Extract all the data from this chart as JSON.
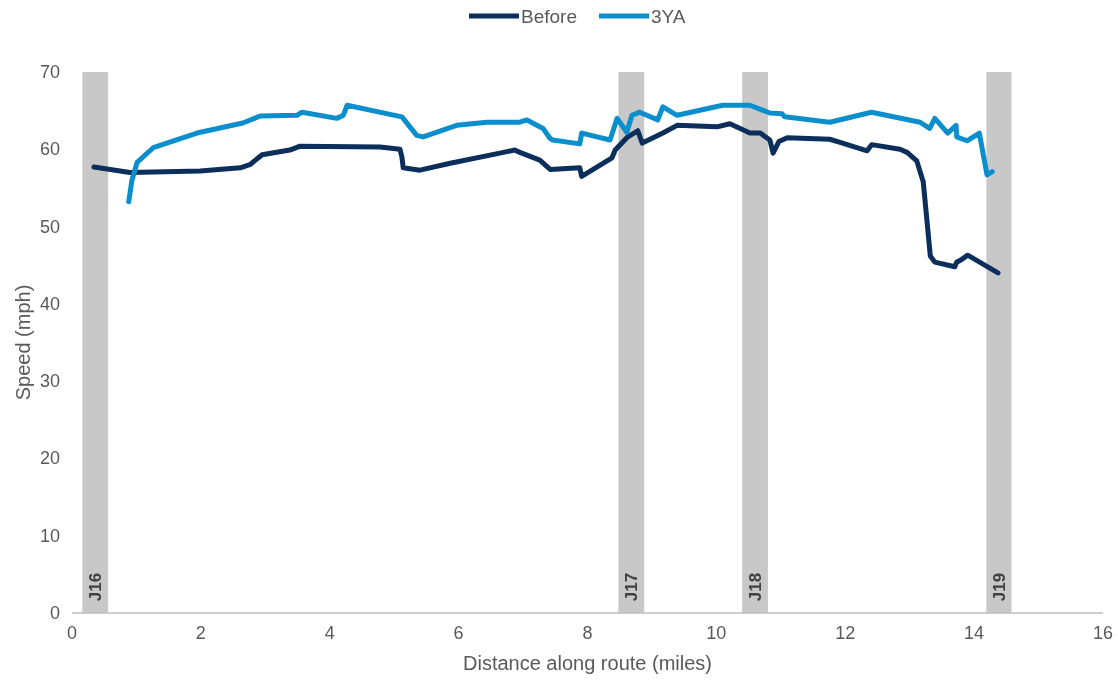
{
  "chart_data": {
    "type": "line",
    "xlabel": "Distance along route (miles)",
    "ylabel": "Speed (mph)",
    "xlim": [
      0,
      16
    ],
    "xticks": [
      0,
      2,
      4,
      6,
      8,
      10,
      12,
      14,
      16
    ],
    "ylim": [
      0,
      70
    ],
    "yticks": [
      0,
      10,
      20,
      30,
      40,
      50,
      60,
      70
    ],
    "grid": false,
    "legend": "top",
    "line_style": "solid",
    "marker": "none",
    "series": [
      {
        "name": "Before",
        "color": "#0b2e5b",
        "x": [
          0.34,
          0.9,
          1.99,
          2.61,
          2.76,
          2.95,
          3.38,
          3.54,
          4.78,
          5.09,
          5.12,
          5.14,
          5.4,
          5.87,
          6.64,
          6.87,
          6.95,
          7.26,
          7.42,
          7.88,
          7.91,
          8.38,
          8.43,
          8.61,
          8.78,
          8.85,
          9.17,
          9.39,
          10.01,
          10.21,
          10.52,
          10.68,
          10.83,
          10.88,
          10.97,
          11.1,
          11.76,
          11.92,
          12.34,
          12.41,
          12.85,
          12.96,
          13.11,
          13.21,
          13.27,
          13.32,
          13.39,
          13.7,
          13.73,
          13.78,
          13.9,
          14.37
        ],
        "values": [
          57.7,
          57.0,
          57.2,
          57.6,
          58.0,
          59.3,
          59.9,
          60.4,
          60.3,
          60.0,
          59.0,
          57.6,
          57.3,
          58.2,
          59.5,
          59.9,
          59.6,
          58.6,
          57.4,
          57.6,
          56.5,
          58.9,
          59.9,
          61.5,
          62.4,
          60.8,
          62.1,
          63.1,
          62.9,
          63.3,
          62.1,
          62.1,
          61.2,
          59.5,
          61.0,
          61.5,
          61.3,
          60.9,
          59.8,
          60.6,
          60.0,
          59.6,
          58.5,
          55.8,
          50.6,
          46.2,
          45.4,
          44.8,
          45.4,
          45.6,
          46.3,
          44.0
        ]
      },
      {
        "name": "3YA",
        "color": "#0a8fcc",
        "x": [
          0.88,
          0.93,
          1.01,
          1.26,
          1.94,
          2.65,
          2.92,
          3.49,
          3.57,
          4.11,
          4.21,
          4.27,
          5.12,
          5.35,
          5.45,
          5.97,
          6.44,
          6.95,
          7.06,
          7.31,
          7.42,
          7.46,
          7.88,
          7.91,
          8.35,
          8.46,
          8.61,
          8.69,
          8.81,
          9.09,
          9.17,
          9.39,
          10.1,
          10.52,
          10.83,
          11.02,
          11.06,
          11.76,
          12.31,
          12.41,
          13.16,
          13.31,
          13.39,
          13.59,
          13.72,
          13.73,
          13.89,
          14.08,
          14.2,
          14.28
        ],
        "values": [
          53.2,
          56.0,
          58.3,
          60.2,
          62.1,
          63.4,
          64.3,
          64.4,
          64.8,
          64.0,
          64.4,
          65.7,
          64.2,
          61.8,
          61.6,
          63.1,
          63.5,
          63.5,
          63.8,
          62.7,
          61.4,
          61.2,
          60.7,
          62.1,
          61.2,
          64.0,
          62.2,
          64.4,
          64.8,
          63.8,
          65.5,
          64.4,
          65.7,
          65.7,
          64.7,
          64.6,
          64.2,
          63.5,
          64.6,
          64.8,
          63.5,
          62.7,
          64.0,
          62.1,
          63.1,
          61.6,
          61.1,
          62.1,
          56.7,
          57.1
        ]
      }
    ],
    "bands": [
      {
        "axis": "x",
        "from": 0.16,
        "to": 0.56,
        "label": "J16",
        "color": "#c8c8c8"
      },
      {
        "axis": "x",
        "from": 8.48,
        "to": 8.88,
        "label": "J17",
        "color": "#c8c8c8"
      },
      {
        "axis": "x",
        "from": 10.4,
        "to": 10.8,
        "label": "J18",
        "color": "#c8c8c8"
      },
      {
        "axis": "x",
        "from": 14.19,
        "to": 14.58,
        "label": "J19",
        "color": "#c8c8c8"
      }
    ]
  }
}
